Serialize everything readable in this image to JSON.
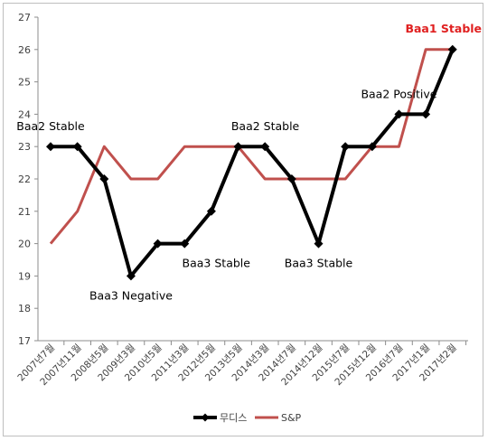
{
  "chart_data": {
    "type": "line",
    "title": "",
    "xlabel": "",
    "ylabel": "",
    "ylim": [
      17,
      27
    ],
    "yticks": [
      17,
      18,
      19,
      20,
      21,
      22,
      23,
      24,
      25,
      26,
      27
    ],
    "grid": false,
    "legend_position": "bottom",
    "categories": [
      "2007년7월",
      "2007년11월",
      "2008년5월",
      "2009년3월",
      "2010년5월",
      "2011년3월",
      "2012년5월",
      "2013년5월",
      "2014년3월",
      "2014년7월",
      "2014년12월",
      "2015년7월",
      "2015년12월",
      "2016년7월",
      "2017년1월",
      "2017년2월"
    ],
    "series": [
      {
        "name": "무디스",
        "color": "#000000",
        "marker": "diamond",
        "values": [
          23,
          23,
          22,
          19,
          20,
          20,
          21,
          23,
          23,
          22,
          20,
          23,
          23,
          24,
          24,
          26
        ]
      },
      {
        "name": "S&P",
        "color": "#c0504d",
        "marker": "none",
        "values": [
          20,
          21,
          23,
          22,
          22,
          23,
          23,
          23,
          22,
          22,
          22,
          22,
          23,
          23,
          26,
          26
        ]
      }
    ],
    "annotations": [
      {
        "text": "Baa2 Stable",
        "index": 0,
        "color": "#000000",
        "bold": false
      },
      {
        "text": "Baa3 Negative",
        "index": 3,
        "color": "#000000",
        "bold": false
      },
      {
        "text": "Baa3 Stable",
        "index": 5,
        "color": "#000000",
        "bold": false
      },
      {
        "text": "Baa2 Stable",
        "index": 7,
        "color": "#000000",
        "bold": false
      },
      {
        "text": "Baa3 Stable",
        "index": 10,
        "color": "#000000",
        "bold": false
      },
      {
        "text": "Baa2 Positive",
        "index": 13,
        "color": "#000000",
        "bold": false
      },
      {
        "text": "Baa1 Stable",
        "index": 15,
        "color": "#e02020",
        "bold": true
      }
    ]
  }
}
